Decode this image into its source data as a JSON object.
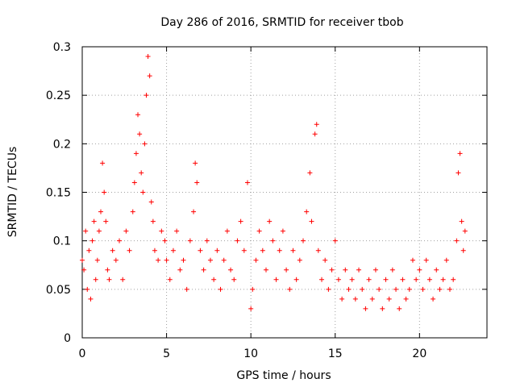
{
  "chart_data": {
    "type": "scatter",
    "title": "Day 286 of 2016, SRMTID for receiver tbob",
    "xlabel": "GPS time / hours",
    "ylabel": "SRMTID / TECUs",
    "xlim": [
      0,
      24
    ],
    "ylim": [
      0,
      0.3
    ],
    "xticks": [
      0,
      5,
      10,
      15,
      20
    ],
    "yticks": [
      0,
      0.05,
      0.1,
      0.15,
      0.2,
      0.25,
      0.3
    ],
    "grid": true,
    "marker": "+",
    "marker_color": "#ff0000",
    "series": [
      {
        "name": "SRMTID",
        "points": [
          [
            0.0,
            0.08
          ],
          [
            0.1,
            0.07
          ],
          [
            0.2,
            0.11
          ],
          [
            0.3,
            0.05
          ],
          [
            0.4,
            0.09
          ],
          [
            0.5,
            0.04
          ],
          [
            0.6,
            0.1
          ],
          [
            0.7,
            0.12
          ],
          [
            0.8,
            0.06
          ],
          [
            0.9,
            0.08
          ],
          [
            1.0,
            0.11
          ],
          [
            1.1,
            0.13
          ],
          [
            1.2,
            0.18
          ],
          [
            1.3,
            0.15
          ],
          [
            1.4,
            0.12
          ],
          [
            1.5,
            0.07
          ],
          [
            1.6,
            0.06
          ],
          [
            1.8,
            0.09
          ],
          [
            2.0,
            0.08
          ],
          [
            2.2,
            0.1
          ],
          [
            2.4,
            0.06
          ],
          [
            2.6,
            0.11
          ],
          [
            2.8,
            0.09
          ],
          [
            3.0,
            0.13
          ],
          [
            3.1,
            0.16
          ],
          [
            3.2,
            0.19
          ],
          [
            3.3,
            0.23
          ],
          [
            3.4,
            0.21
          ],
          [
            3.5,
            0.17
          ],
          [
            3.6,
            0.15
          ],
          [
            3.7,
            0.2
          ],
          [
            3.8,
            0.25
          ],
          [
            3.9,
            0.29
          ],
          [
            4.0,
            0.27
          ],
          [
            4.1,
            0.14
          ],
          [
            4.2,
            0.12
          ],
          [
            4.3,
            0.09
          ],
          [
            4.5,
            0.08
          ],
          [
            4.7,
            0.11
          ],
          [
            4.9,
            0.1
          ],
          [
            5.0,
            0.08
          ],
          [
            5.2,
            0.06
          ],
          [
            5.4,
            0.09
          ],
          [
            5.6,
            0.11
          ],
          [
            5.8,
            0.07
          ],
          [
            6.0,
            0.08
          ],
          [
            6.2,
            0.05
          ],
          [
            6.4,
            0.1
          ],
          [
            6.6,
            0.13
          ],
          [
            6.7,
            0.18
          ],
          [
            6.8,
            0.16
          ],
          [
            7.0,
            0.09
          ],
          [
            7.2,
            0.07
          ],
          [
            7.4,
            0.1
          ],
          [
            7.6,
            0.08
          ],
          [
            7.8,
            0.06
          ],
          [
            8.0,
            0.09
          ],
          [
            8.2,
            0.05
          ],
          [
            8.4,
            0.08
          ],
          [
            8.6,
            0.11
          ],
          [
            8.8,
            0.07
          ],
          [
            9.0,
            0.06
          ],
          [
            9.2,
            0.1
          ],
          [
            9.4,
            0.12
          ],
          [
            9.6,
            0.09
          ],
          [
            9.8,
            0.16
          ],
          [
            10.0,
            0.03
          ],
          [
            10.1,
            0.05
          ],
          [
            10.3,
            0.08
          ],
          [
            10.5,
            0.11
          ],
          [
            10.7,
            0.09
          ],
          [
            10.9,
            0.07
          ],
          [
            11.1,
            0.12
          ],
          [
            11.3,
            0.1
          ],
          [
            11.5,
            0.06
          ],
          [
            11.7,
            0.09
          ],
          [
            11.9,
            0.11
          ],
          [
            12.1,
            0.07
          ],
          [
            12.3,
            0.05
          ],
          [
            12.5,
            0.09
          ],
          [
            12.7,
            0.06
          ],
          [
            12.9,
            0.08
          ],
          [
            13.1,
            0.1
          ],
          [
            13.3,
            0.13
          ],
          [
            13.5,
            0.17
          ],
          [
            13.6,
            0.12
          ],
          [
            13.8,
            0.21
          ],
          [
            13.9,
            0.22
          ],
          [
            14.0,
            0.09
          ],
          [
            14.2,
            0.06
          ],
          [
            14.4,
            0.08
          ],
          [
            14.6,
            0.05
          ],
          [
            14.8,
            0.07
          ],
          [
            15.0,
            0.1
          ],
          [
            15.2,
            0.06
          ],
          [
            15.4,
            0.04
          ],
          [
            15.6,
            0.07
          ],
          [
            15.8,
            0.05
          ],
          [
            16.0,
            0.06
          ],
          [
            16.2,
            0.04
          ],
          [
            16.4,
            0.07
          ],
          [
            16.6,
            0.05
          ],
          [
            16.8,
            0.03
          ],
          [
            17.0,
            0.06
          ],
          [
            17.2,
            0.04
          ],
          [
            17.4,
            0.07
          ],
          [
            17.6,
            0.05
          ],
          [
            17.8,
            0.03
          ],
          [
            18.0,
            0.06
          ],
          [
            18.2,
            0.04
          ],
          [
            18.4,
            0.07
          ],
          [
            18.6,
            0.05
          ],
          [
            18.8,
            0.03
          ],
          [
            19.0,
            0.06
          ],
          [
            19.2,
            0.04
          ],
          [
            19.4,
            0.05
          ],
          [
            19.6,
            0.08
          ],
          [
            19.8,
            0.06
          ],
          [
            20.0,
            0.07
          ],
          [
            20.2,
            0.05
          ],
          [
            20.4,
            0.08
          ],
          [
            20.6,
            0.06
          ],
          [
            20.8,
            0.04
          ],
          [
            21.0,
            0.07
          ],
          [
            21.2,
            0.05
          ],
          [
            21.4,
            0.06
          ],
          [
            21.6,
            0.08
          ],
          [
            21.8,
            0.05
          ],
          [
            22.0,
            0.06
          ],
          [
            22.2,
            0.1
          ],
          [
            22.3,
            0.17
          ],
          [
            22.4,
            0.19
          ],
          [
            22.5,
            0.12
          ],
          [
            22.6,
            0.09
          ],
          [
            22.7,
            0.11
          ]
        ]
      }
    ]
  }
}
